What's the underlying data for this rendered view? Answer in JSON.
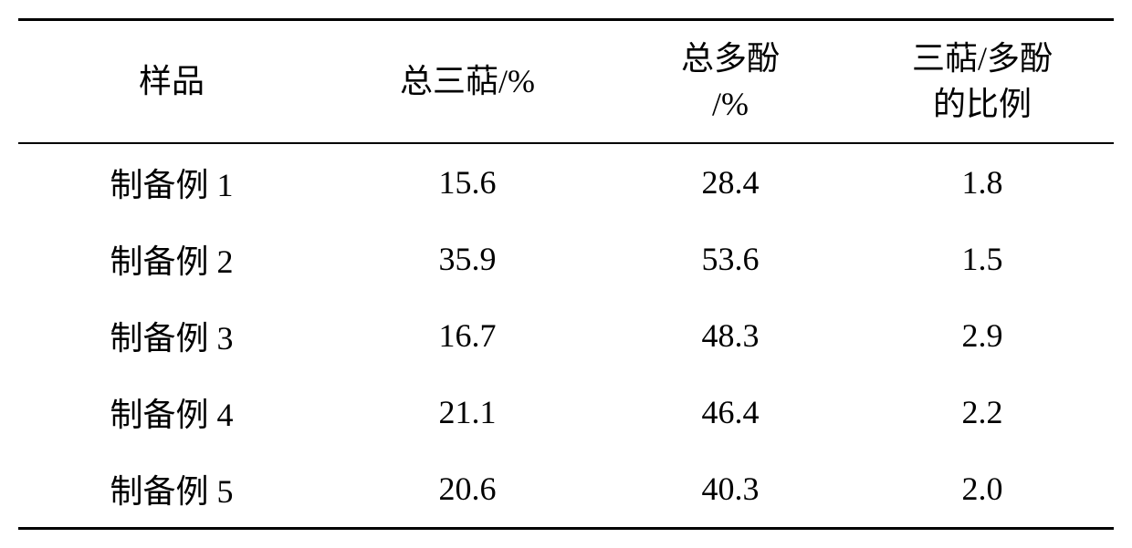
{
  "table": {
    "columns": [
      {
        "key": "sample",
        "label": "样品"
      },
      {
        "key": "triterpene",
        "label": "总三萜/%"
      },
      {
        "key": "polyphenol",
        "label": "总多酚\n/%"
      },
      {
        "key": "ratio",
        "label": "三萜/多酚\n的比例"
      }
    ],
    "rows": [
      {
        "sample": "制备例 1",
        "triterpene": "15.6",
        "polyphenol": "28.4",
        "ratio": "1.8"
      },
      {
        "sample": "制备例 2",
        "triterpene": "35.9",
        "polyphenol": "53.6",
        "ratio": "1.5"
      },
      {
        "sample": "制备例 3",
        "triterpene": "16.7",
        "polyphenol": "48.3",
        "ratio": "2.9"
      },
      {
        "sample": "制备例 4",
        "triterpene": "21.1",
        "polyphenol": "46.4",
        "ratio": "2.2"
      },
      {
        "sample": "制备例 5",
        "triterpene": "20.6",
        "polyphenol": "40.3",
        "ratio": "2.0"
      }
    ],
    "styling": {
      "border_color": "#000000",
      "top_border_width": 3,
      "header_bottom_border_width": 2,
      "bottom_border_width": 3,
      "background_color": "#ffffff",
      "text_color": "#000000",
      "font_size": 36,
      "font_family": "SimSun",
      "column_widths_pct": [
        28,
        26,
        22,
        24
      ],
      "cell_padding_v": 16,
      "cell_padding_h": 10
    }
  }
}
